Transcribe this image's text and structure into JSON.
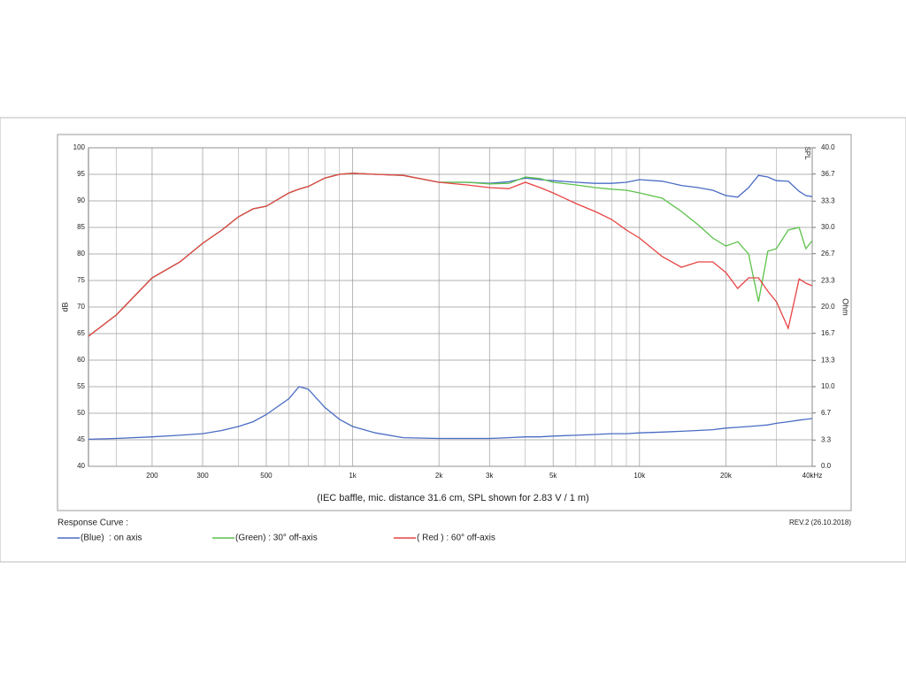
{
  "chart_data": {
    "type": "line",
    "y_label": "dB",
    "y2_label": "Ohm",
    "corner_label": "SPL",
    "caption": "(IEC baffle, mic. distance 31.6 cm, SPL shown for 2.83 V / 1 m)",
    "legend_title": "Response Curve :",
    "revision": "REV.2 (26.10.2018)",
    "xscale": "log",
    "grid": true,
    "x": [
      120,
      150,
      200,
      250,
      300,
      350,
      400,
      450,
      500,
      600,
      650,
      700,
      800,
      900,
      1000,
      1200,
      1500,
      2000,
      2500,
      3000,
      3500,
      4000,
      4500,
      5000,
      6000,
      7000,
      8000,
      9000,
      10000,
      12000,
      14000,
      16000,
      18000,
      20000,
      22000,
      24000,
      26000,
      28000,
      30000,
      33000,
      36000,
      38000,
      40000
    ],
    "xlim": [
      120,
      40000
    ],
    "xticks": [
      {
        "value": 200,
        "label": "200"
      },
      {
        "value": 300,
        "label": "300"
      },
      {
        "value": 500,
        "label": "500"
      },
      {
        "value": 1000,
        "label": "1k"
      },
      {
        "value": 2000,
        "label": "2k"
      },
      {
        "value": 3000,
        "label": "3k"
      },
      {
        "value": 5000,
        "label": "5k"
      },
      {
        "value": 10000,
        "label": "10k"
      },
      {
        "value": 20000,
        "label": "20k"
      },
      {
        "value": 40000,
        "label": "40kHz"
      }
    ],
    "xminorticks": [
      150,
      400,
      600,
      700,
      800,
      900,
      4000,
      6000,
      7000,
      8000,
      9000,
      30000
    ],
    "ylim": [
      40,
      100
    ],
    "yticks": [
      40,
      45,
      50,
      55,
      60,
      65,
      70,
      75,
      80,
      85,
      90,
      95,
      100
    ],
    "y2lim": [
      0,
      40
    ],
    "y2ticks": [
      {
        "value": 0,
        "label": "0.0"
      },
      {
        "value": 3.3,
        "label": "3.3"
      },
      {
        "value": 6.7,
        "label": "6.7"
      },
      {
        "value": 10,
        "label": "10.0"
      },
      {
        "value": 13.3,
        "label": "13.3"
      },
      {
        "value": 16.7,
        "label": "16.7"
      },
      {
        "value": 20,
        "label": "20.0"
      },
      {
        "value": 23.3,
        "label": "23.3"
      },
      {
        "value": 26.7,
        "label": "26.7"
      },
      {
        "value": 30,
        "label": "30.0"
      },
      {
        "value": 33.3,
        "label": "33.3"
      },
      {
        "value": 36.7,
        "label": "36.7"
      },
      {
        "value": 40,
        "label": "40.0"
      }
    ],
    "series": [
      {
        "name": "(Blue)  : on axis",
        "color": "#4a6cc4",
        "values": [
          64.5,
          68.5,
          75.5,
          78.5,
          82,
          84.5,
          87,
          88.5,
          89,
          91.5,
          92.2,
          92.7,
          94.3,
          95,
          95.2,
          95,
          94.8,
          93.5,
          93.5,
          93.3,
          93.6,
          94.3,
          94,
          93.8,
          93.5,
          93.3,
          93.3,
          93.5,
          94,
          93.7,
          92.9,
          92.5,
          92,
          91,
          90.7,
          92.5,
          94.8,
          94.5,
          93.8,
          93.7,
          91.8,
          91,
          90.8
        ]
      },
      {
        "name": "(Green) : 30° off-axis",
        "color": "#5cc24a",
        "values": [
          64.5,
          68.5,
          75.5,
          78.5,
          82,
          84.5,
          87,
          88.5,
          89,
          91.5,
          92.2,
          92.7,
          94.3,
          95,
          95.2,
          95,
          94.8,
          93.5,
          93.5,
          93.2,
          93.3,
          94.5,
          94.2,
          93.5,
          93,
          92.5,
          92.2,
          92,
          91.5,
          90.5,
          88,
          85.5,
          83,
          81.5,
          82.3,
          80,
          71,
          80.5,
          81,
          84.5,
          85,
          81,
          82.5
        ]
      },
      {
        "name": "( Red ) : 60° off-axis",
        "color": "#e84444",
        "values": [
          64.5,
          68.5,
          75.5,
          78.5,
          82,
          84.5,
          87,
          88.5,
          89,
          91.5,
          92.2,
          92.7,
          94.3,
          95,
          95.2,
          95,
          94.8,
          93.5,
          93,
          92.5,
          92.3,
          93.5,
          92.5,
          91.5,
          89.5,
          88,
          86.5,
          84.5,
          83,
          79.5,
          77.5,
          78.5,
          78.5,
          76.5,
          73.5,
          75.5,
          75.5,
          73,
          71,
          66,
          75.3,
          74.5,
          74
        ]
      },
      {
        "color": "#4a6cc4",
        "axis": "y2",
        "values": [
          3.4,
          3.5,
          3.7,
          3.9,
          4.1,
          4.5,
          5.0,
          5.6,
          6.5,
          8.5,
          10.0,
          9.7,
          7.4,
          5.9,
          5.0,
          4.2,
          3.6,
          3.5,
          3.5,
          3.5,
          3.6,
          3.7,
          3.7,
          3.8,
          3.9,
          4.0,
          4.1,
          4.1,
          4.2,
          4.3,
          4.4,
          4.5,
          4.6,
          4.8,
          4.9,
          5.0,
          5.1,
          5.2,
          5.4,
          5.6,
          5.8,
          5.9,
          6.0
        ]
      }
    ]
  }
}
